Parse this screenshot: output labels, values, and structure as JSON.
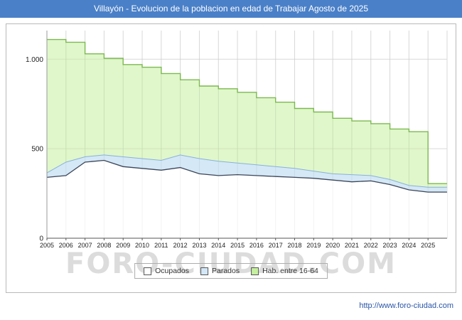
{
  "titlebar": {
    "title": "Villayón - Evolucion de la poblacion en edad de Trabajar Agosto de 2025"
  },
  "watermark": "FORO-CIUDAD.COM",
  "footer": {
    "url": "http://www.foro-ciudad.com"
  },
  "colors": {
    "titlebar_bg": "#4a80c8",
    "hab_fill": "#c6f0a0",
    "hab_line": "#7cb950",
    "parados_fill": "#d3e7f8",
    "parados_line": "#8ab0da",
    "ocupados_fill": "#ffffff",
    "ocupados_line": "#3c4458",
    "grid": "#e4e4e4",
    "axis": "#555555"
  },
  "chart_data": {
    "type": "area",
    "title": "Villayón - Evolucion de la poblacion en edad de Trabajar Agosto de 2025",
    "x": [
      2005,
      2006,
      2007,
      2008,
      2009,
      2010,
      2011,
      2012,
      2013,
      2014,
      2015,
      2016,
      2017,
      2018,
      2019,
      2020,
      2021,
      2022,
      2023,
      2024,
      2025
    ],
    "x_end": 2026,
    "series": [
      {
        "name": "Ocupados",
        "render": "line",
        "values": [
          340,
          350,
          425,
          435,
          400,
          390,
          380,
          395,
          360,
          350,
          355,
          350,
          345,
          340,
          335,
          325,
          315,
          320,
          300,
          270,
          258
        ],
        "fill": "#ffffff",
        "line_color": "#3c4458"
      },
      {
        "name": "Parados",
        "render": "band",
        "values": [
          25,
          75,
          30,
          30,
          55,
          55,
          55,
          70,
          85,
          80,
          65,
          60,
          55,
          50,
          40,
          35,
          40,
          30,
          28,
          25,
          27
        ],
        "fill": "#d3e7f8",
        "line_color": "#8ab0da"
      },
      {
        "name": "Hab. entre 16-64",
        "render": "step",
        "values": [
          1110,
          1095,
          1030,
          1005,
          970,
          955,
          920,
          885,
          850,
          835,
          815,
          785,
          760,
          725,
          705,
          670,
          655,
          640,
          610,
          595,
          305
        ],
        "fill": "#c6f0a0",
        "fill_opacity": 0.55,
        "line_color": "#7cb950"
      }
    ],
    "ylim": [
      0,
      1160
    ],
    "yticks": [
      0,
      500,
      1000
    ],
    "ytick_labels": [
      "0",
      "500",
      "1.000"
    ],
    "grid": true,
    "legend_position": "bottom"
  }
}
